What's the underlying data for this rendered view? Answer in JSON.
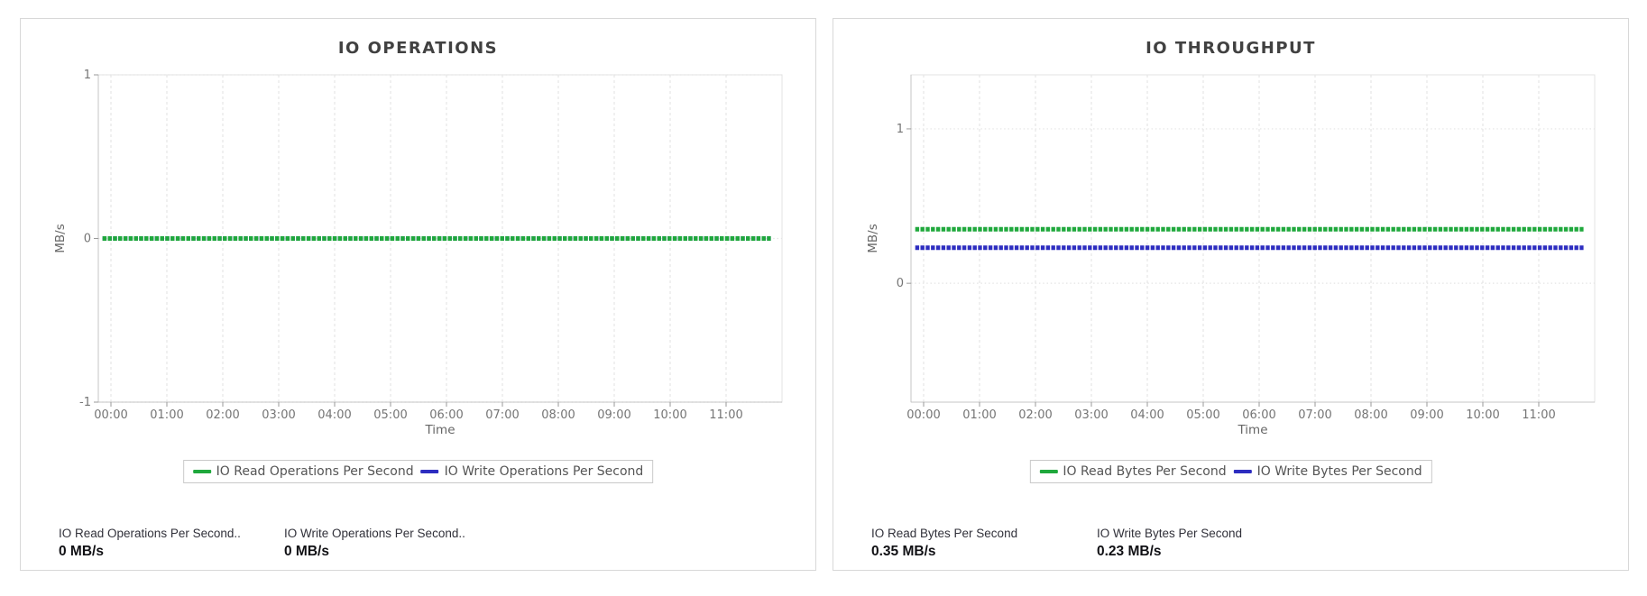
{
  "page": {
    "background": "#ffffff"
  },
  "colors": {
    "read_series": "#1fa83c",
    "write_series": "#2d2dc0",
    "grid_vertical": "#e2e2e2",
    "grid_horizontal": "#e4e4e4",
    "plot_border": "#e3e3e3",
    "axis_line": "#c4c4c4",
    "tick_mark": "#9a9a9a",
    "tick_label": "#757575",
    "axis_label": "#666666"
  },
  "chart_data": [
    {
      "type": "line",
      "title": "IO OPERATIONS",
      "xlabel": "Time",
      "ylabel": "MB/s",
      "x_ticks": [
        "00:00",
        "01:00",
        "02:00",
        "03:00",
        "04:00",
        "05:00",
        "06:00",
        "07:00",
        "08:00",
        "09:00",
        "10:00",
        "11:00"
      ],
      "y_ticks": [
        1,
        0,
        -1
      ],
      "ylim": [
        -1,
        1
      ],
      "x_range_hours": [
        -0.15,
        11.8
      ],
      "grid": true,
      "legend_position": "bottom",
      "series": [
        {
          "name": "IO Read Operations Per Second",
          "color": "#1fa83c",
          "value": 0
        },
        {
          "name": "IO Write Operations Per Second",
          "color": "#2d2dc0",
          "value": 0
        }
      ]
    },
    {
      "type": "line",
      "title": "IO THROUGHPUT",
      "xlabel": "Time",
      "ylabel": "MB/s",
      "x_ticks": [
        "00:00",
        "01:00",
        "02:00",
        "03:00",
        "04:00",
        "05:00",
        "06:00",
        "07:00",
        "08:00",
        "09:00",
        "10:00",
        "11:00"
      ],
      "y_ticks": [
        1,
        0
      ],
      "ylim": [
        -0.77,
        1.35
      ],
      "x_range_hours": [
        -0.15,
        11.8
      ],
      "grid": true,
      "legend_position": "bottom",
      "series": [
        {
          "name": "IO Read Bytes Per Second",
          "color": "#1fa83c",
          "value": 0.35
        },
        {
          "name": "IO Write Bytes Per Second",
          "color": "#2d2dc0",
          "value": 0.23
        }
      ]
    }
  ],
  "panels": [
    {
      "stats": [
        {
          "label": "IO Read Operations Per Second..",
          "value": "0 MB/s"
        },
        {
          "label": "IO Write Operations Per Second..",
          "value": "0 MB/s"
        }
      ]
    },
    {
      "stats": [
        {
          "label": "IO Read Bytes Per Second",
          "value": "0.35 MB/s"
        },
        {
          "label": "IO Write Bytes Per Second",
          "value": "0.23 MB/s"
        }
      ]
    }
  ]
}
